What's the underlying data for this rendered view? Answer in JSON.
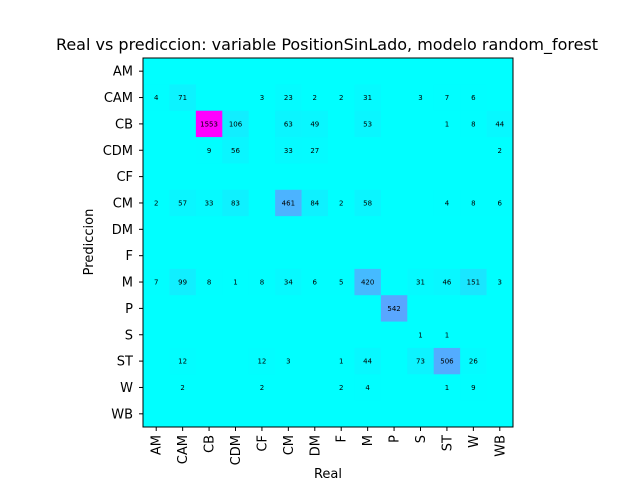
{
  "chart_data": {
    "type": "heatmap",
    "title": "Real vs prediccion: variable PositionSinLado, modelo random_forest",
    "xlabel": "Real",
    "ylabel": "Prediccion",
    "x_categories": [
      "AM",
      "CAM",
      "CB",
      "CDM",
      "CF",
      "CM",
      "DM",
      "F",
      "M",
      "P",
      "S",
      "ST",
      "W",
      "WB"
    ],
    "y_categories": [
      "AM",
      "CAM",
      "CB",
      "CDM",
      "CF",
      "CM",
      "DM",
      "F",
      "M",
      "P",
      "S",
      "ST",
      "W",
      "WB"
    ],
    "colormap": "cool",
    "color_low": "#00ffff",
    "color_high": "#ff00ff",
    "vmin": 0,
    "vmax": 1553,
    "matrix": [
      [
        0,
        0,
        0,
        0,
        0,
        0,
        0,
        0,
        0,
        0,
        0,
        0,
        0,
        0
      ],
      [
        4,
        71,
        0,
        0,
        3,
        23,
        2,
        2,
        31,
        0,
        3,
        7,
        6,
        0
      ],
      [
        0,
        0,
        1553,
        106,
        0,
        63,
        49,
        0,
        53,
        0,
        0,
        1,
        8,
        44
      ],
      [
        0,
        0,
        9,
        56,
        0,
        33,
        27,
        0,
        0,
        0,
        0,
        0,
        0,
        2
      ],
      [
        0,
        0,
        0,
        0,
        0,
        0,
        0,
        0,
        0,
        0,
        0,
        0,
        0,
        0
      ],
      [
        2,
        57,
        33,
        83,
        0,
        461,
        84,
        2,
        58,
        0,
        0,
        4,
        8,
        6
      ],
      [
        0,
        0,
        0,
        0,
        0,
        0,
        0,
        0,
        0,
        0,
        0,
        0,
        0,
        0
      ],
      [
        0,
        0,
        0,
        0,
        0,
        0,
        0,
        0,
        0,
        0,
        0,
        0,
        0,
        0
      ],
      [
        7,
        99,
        8,
        1,
        8,
        34,
        6,
        5,
        420,
        0,
        31,
        46,
        151,
        3
      ],
      [
        0,
        0,
        0,
        0,
        0,
        0,
        0,
        0,
        0,
        542,
        0,
        0,
        0,
        0
      ],
      [
        0,
        0,
        0,
        0,
        0,
        0,
        0,
        0,
        0,
        0,
        1,
        1,
        0,
        0
      ],
      [
        0,
        12,
        0,
        0,
        12,
        3,
        0,
        1,
        44,
        0,
        73,
        506,
        26,
        0
      ],
      [
        0,
        2,
        0,
        0,
        2,
        0,
        0,
        2,
        4,
        0,
        0,
        1,
        9,
        0
      ],
      [
        0,
        0,
        0,
        0,
        0,
        0,
        0,
        0,
        0,
        0,
        0,
        0,
        0,
        0
      ]
    ]
  }
}
